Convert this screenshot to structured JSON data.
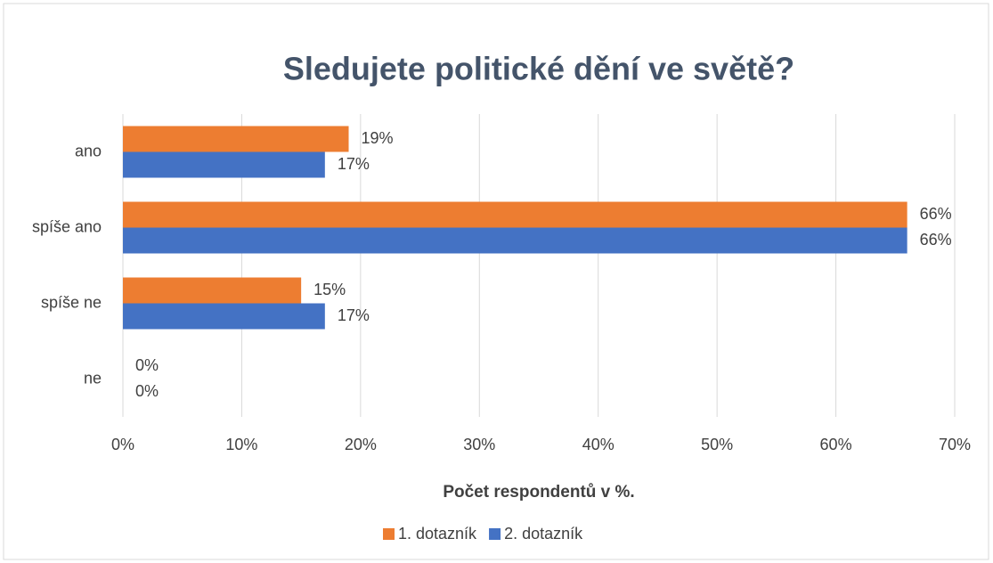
{
  "chart_data": {
    "type": "hbar",
    "title": "Sledujete politické dění ve světě?",
    "x_label": "Počet respondentů v %.",
    "categories": [
      "ano",
      "spíše ano",
      "spíše ne",
      "ne"
    ],
    "series": [
      {
        "name": "1. dotazník",
        "color": "#ed7d31",
        "values": [
          19,
          66,
          15,
          0
        ],
        "value_labels": [
          "19%",
          "66%",
          "15%",
          "0%"
        ]
      },
      {
        "name": "2. dotazník",
        "color": "#4472c4",
        "values": [
          17,
          66,
          17,
          0
        ],
        "value_labels": [
          "17%",
          "66%",
          "17%",
          "0%"
        ]
      }
    ],
    "xlim": [
      0,
      70
    ],
    "xticks": [
      {
        "value": 0,
        "label": "0%"
      },
      {
        "value": 10,
        "label": "10%"
      },
      {
        "value": 20,
        "label": "20%"
      },
      {
        "value": 30,
        "label": "30%"
      },
      {
        "value": 40,
        "label": "40%"
      },
      {
        "value": 50,
        "label": "50%"
      },
      {
        "value": 60,
        "label": "60%"
      },
      {
        "value": 70,
        "label": "70%"
      }
    ],
    "grid": true,
    "legend": "bottom"
  }
}
